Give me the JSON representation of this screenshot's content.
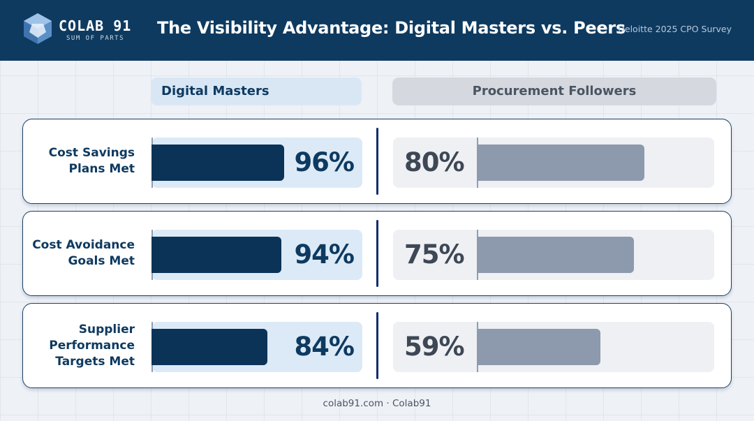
{
  "header": {
    "logo_name": "COLAB 91",
    "logo_tagline": "SUM OF PARTS",
    "title": "The Visibility Advantage: Digital Masters vs. Peers",
    "source": "Deloitte 2025 CPO Survey"
  },
  "footer": {
    "text": "colab91.com · Colab91"
  },
  "colors": {
    "header_bg": "#0e3a60",
    "digital_masters_bar": "#0b3358",
    "followers_bar": "#8d99ad"
  },
  "icons": {
    "logo": "colab91-logo-icon"
  },
  "chart_data": {
    "type": "bar",
    "title": "The Visibility Advantage: Digital Masters vs. Peers",
    "categories": [
      "Cost Savings Plans Met",
      "Cost Avoidance Goals Met",
      "Supplier Performance Targets Met"
    ],
    "category_lines": [
      [
        "Cost Savings",
        "Plans Met"
      ],
      [
        "Cost Avoidance",
        "Goals Met"
      ],
      [
        "Supplier",
        "Performance",
        "Targets Met"
      ]
    ],
    "series": [
      {
        "name": "Digital Masters",
        "values": [
          96,
          94,
          84
        ],
        "labels": [
          "96%",
          "94%",
          "84%"
        ]
      },
      {
        "name": "Procurement Followers",
        "values": [
          80,
          75,
          59
        ],
        "labels": [
          "80%",
          "75%",
          "59%"
        ]
      }
    ],
    "unit": "%",
    "ylim": [
      0,
      100
    ],
    "orientation": "horizontal",
    "grid": false
  }
}
